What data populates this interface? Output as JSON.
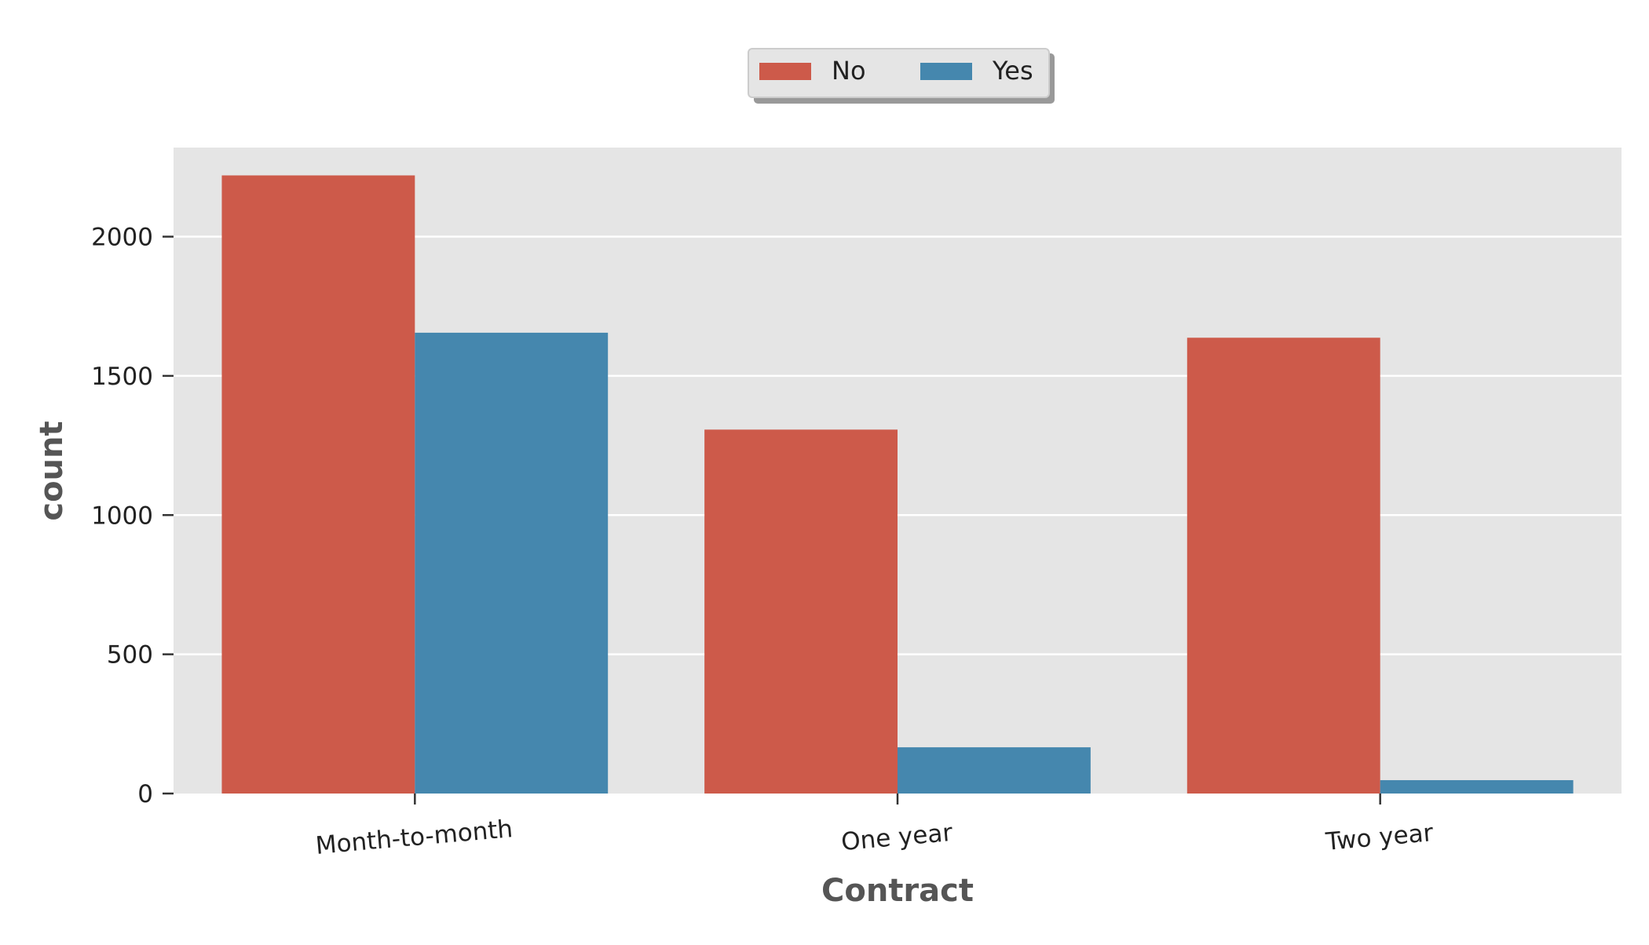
{
  "chart_data": {
    "type": "bar",
    "title": "",
    "xlabel": "Contract",
    "ylabel": "count",
    "categories": [
      "Month-to-month",
      "One year",
      "Two year"
    ],
    "series": [
      {
        "name": "No",
        "color": "#cd5a4a",
        "values": [
          2220,
          1307,
          1637
        ]
      },
      {
        "name": "Yes",
        "color": "#4587ae",
        "values": [
          1655,
          166,
          48
        ]
      }
    ],
    "ylim": [
      0,
      2320
    ],
    "yticks": [
      0,
      500,
      1000,
      1500,
      2000
    ],
    "grid": true,
    "legend_position": "top-center, above plot",
    "background_color": "#e5e5e5"
  }
}
